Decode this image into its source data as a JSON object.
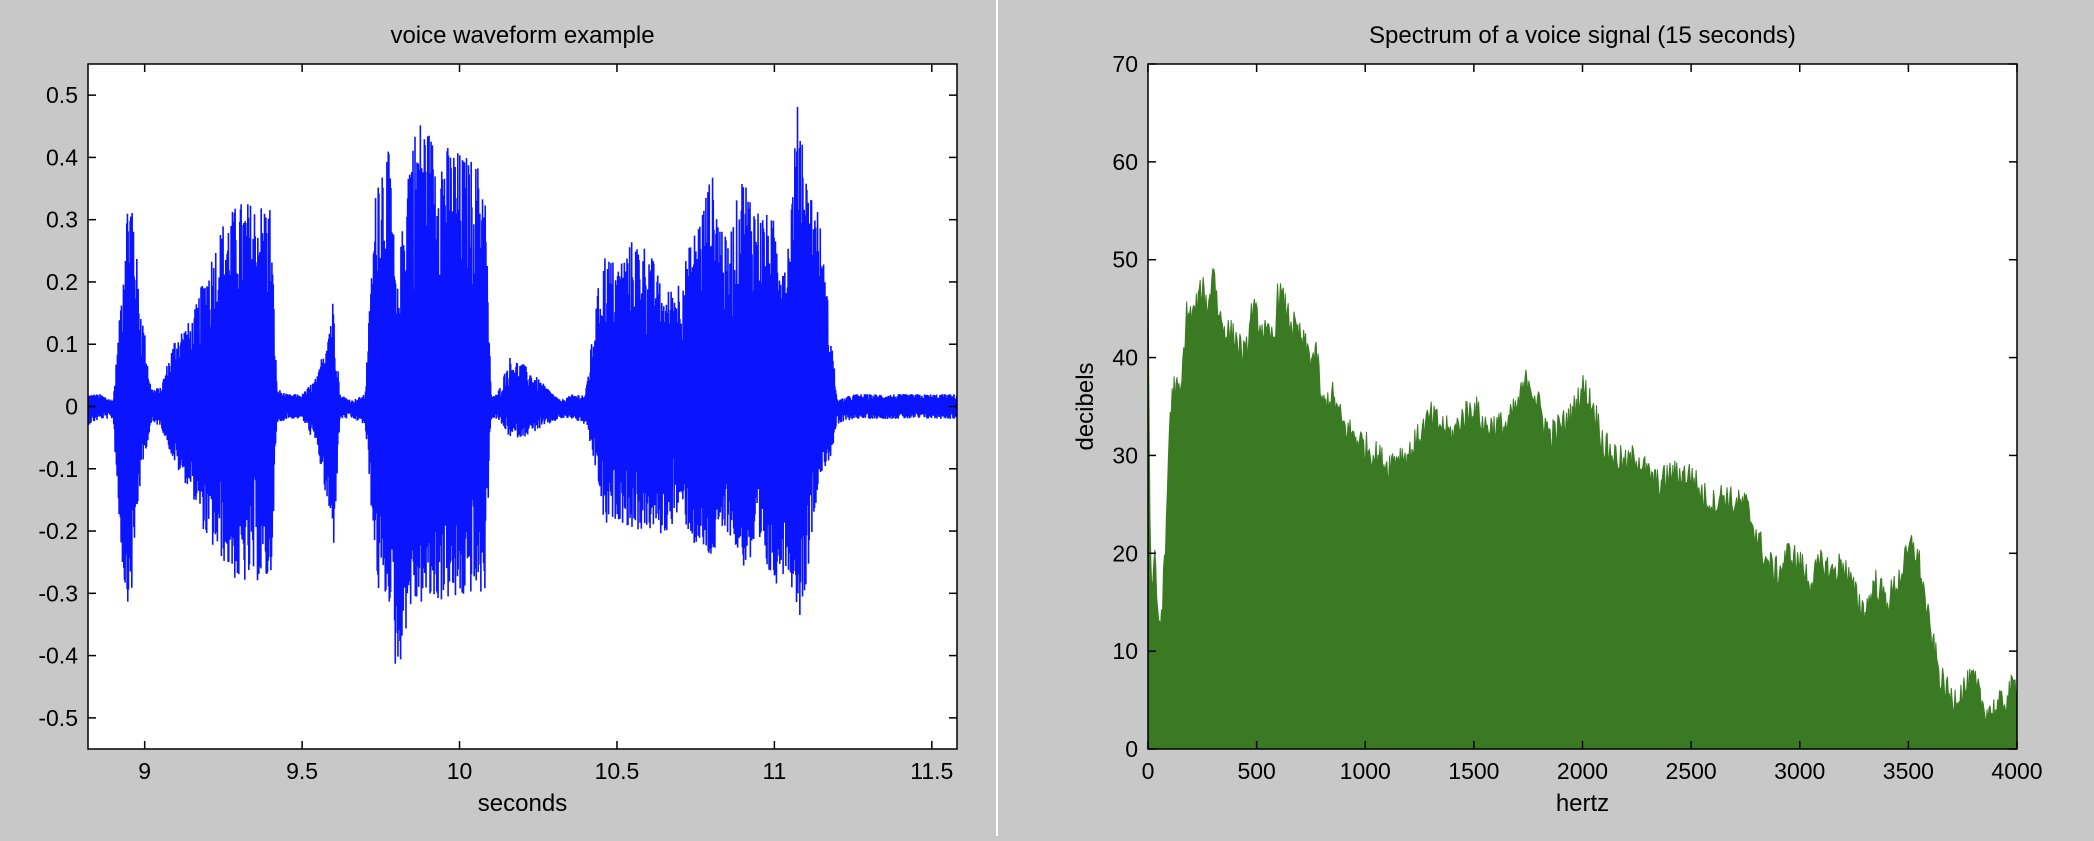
{
  "colors": {
    "figure_bg": "#c8c8c8",
    "axes_bg": "#ffffff",
    "waveform": "#0a14ff",
    "spectrum": "#3a7a22"
  },
  "chart_data": [
    {
      "type": "line",
      "title": "voice waveform example",
      "xlabel": "seconds",
      "ylabel": "",
      "xlim": [
        8.82,
        11.58
      ],
      "ylim": [
        -0.55,
        0.55
      ],
      "xticks": [
        9,
        9.5,
        10,
        10.5,
        11,
        11.5
      ],
      "xtick_labels": [
        "9",
        "9.5",
        "10",
        "10.5",
        "11",
        "11.5"
      ],
      "yticks": [
        0.5,
        0.4,
        0.3,
        0.2,
        0.1,
        0,
        -0.1,
        -0.2,
        -0.3,
        -0.4,
        -0.5
      ],
      "ytick_labels": [
        "0.5",
        "0.4",
        "0.3",
        "0.2",
        "0.1",
        "0",
        "-0.1",
        "-0.2",
        "-0.3",
        "-0.4",
        "-0.5"
      ],
      "grid": false,
      "series": [
        {
          "x": [
            8.82,
            8.86,
            8.9,
            8.92,
            8.94,
            8.96,
            8.98,
            9.0,
            9.02,
            9.05,
            9.1,
            9.15,
            9.2,
            9.25,
            9.3,
            9.35,
            9.4,
            9.42,
            9.45,
            9.5,
            9.55,
            9.6,
            9.62,
            9.66,
            9.7,
            9.74,
            9.78,
            9.8,
            9.84,
            9.88,
            9.92,
            9.96,
            9.98,
            10.0,
            10.04,
            10.08,
            10.1,
            10.12,
            10.16,
            10.2,
            10.24,
            10.28,
            10.32,
            10.36,
            10.4,
            10.44,
            10.46,
            10.5,
            10.55,
            10.6,
            10.65,
            10.7,
            10.75,
            10.8,
            10.85,
            10.9,
            10.95,
            11.0,
            11.04,
            11.08,
            11.1,
            11.14,
            11.18,
            11.2,
            11.25,
            11.3,
            11.35,
            11.4,
            11.45,
            11.5,
            11.58
          ],
          "envelope_top": [
            0.02,
            0.02,
            0.01,
            0.14,
            0.33,
            0.36,
            0.2,
            0.12,
            0.03,
            0.03,
            0.12,
            0.14,
            0.23,
            0.3,
            0.33,
            0.33,
            0.33,
            0.03,
            0.02,
            0.02,
            0.05,
            0.18,
            0.02,
            0.01,
            0.02,
            0.41,
            0.41,
            0.17,
            0.43,
            0.47,
            0.43,
            0.42,
            0.42,
            0.41,
            0.4,
            0.38,
            0.02,
            0.02,
            0.08,
            0.07,
            0.05,
            0.03,
            0.01,
            0.02,
            0.02,
            0.19,
            0.25,
            0.23,
            0.27,
            0.26,
            0.18,
            0.21,
            0.29,
            0.38,
            0.26,
            0.38,
            0.32,
            0.3,
            0.25,
            0.53,
            0.38,
            0.32,
            0.12,
            0.01,
            0.02,
            0.02,
            0.02,
            0.02,
            0.02,
            0.02,
            0.02
          ],
          "envelope_bottom": [
            -0.03,
            -0.02,
            -0.02,
            -0.2,
            -0.32,
            -0.3,
            -0.15,
            -0.08,
            -0.03,
            -0.03,
            -0.1,
            -0.14,
            -0.22,
            -0.25,
            -0.29,
            -0.28,
            -0.29,
            -0.03,
            -0.02,
            -0.02,
            -0.07,
            -0.23,
            -0.02,
            -0.02,
            -0.03,
            -0.3,
            -0.32,
            -0.45,
            -0.33,
            -0.32,
            -0.32,
            -0.31,
            -0.32,
            -0.32,
            -0.3,
            -0.31,
            -0.02,
            -0.02,
            -0.05,
            -0.05,
            -0.04,
            -0.03,
            -0.02,
            -0.02,
            -0.03,
            -0.12,
            -0.2,
            -0.18,
            -0.2,
            -0.2,
            -0.21,
            -0.17,
            -0.23,
            -0.25,
            -0.2,
            -0.26,
            -0.25,
            -0.29,
            -0.26,
            -0.34,
            -0.29,
            -0.12,
            -0.08,
            -0.03,
            -0.02,
            -0.02,
            -0.02,
            -0.02,
            -0.02,
            -0.02,
            -0.02
          ]
        }
      ]
    },
    {
      "type": "area",
      "title": "Spectrum of a voice signal (15 seconds)",
      "xlabel": "hertz",
      "ylabel": "decibels",
      "xlim": [
        0,
        4000
      ],
      "ylim": [
        0,
        70
      ],
      "xticks": [
        0,
        500,
        1000,
        1500,
        2000,
        2500,
        3000,
        3500,
        4000
      ],
      "xtick_labels": [
        "0",
        "500",
        "1000",
        "1500",
        "2000",
        "2500",
        "3000",
        "3500",
        "4000"
      ],
      "yticks": [
        0,
        10,
        20,
        30,
        40,
        50,
        60,
        70
      ],
      "ytick_labels": [
        "0",
        "10",
        "20",
        "30",
        "40",
        "50",
        "60",
        "70"
      ],
      "grid": false,
      "series": [
        {
          "x": [
            0,
            10,
            20,
            30,
            40,
            60,
            80,
            100,
            120,
            150,
            180,
            200,
            220,
            250,
            280,
            300,
            320,
            350,
            400,
            450,
            480,
            500,
            520,
            550,
            580,
            600,
            650,
            700,
            750,
            780,
            800,
            850,
            900,
            950,
            1000,
            1050,
            1100,
            1150,
            1200,
            1250,
            1300,
            1350,
            1400,
            1450,
            1500,
            1550,
            1600,
            1650,
            1700,
            1750,
            1800,
            1850,
            1900,
            1950,
            2000,
            2050,
            2100,
            2150,
            2200,
            2250,
            2300,
            2350,
            2400,
            2450,
            2500,
            2550,
            2600,
            2650,
            2700,
            2750,
            2800,
            2850,
            2900,
            2950,
            3000,
            3050,
            3100,
            3150,
            3200,
            3250,
            3300,
            3350,
            3400,
            3450,
            3500,
            3520,
            3550,
            3600,
            3650,
            3700,
            3750,
            3800,
            3850,
            3900,
            3950,
            4000
          ],
          "values": [
            48,
            21,
            15,
            22,
            14,
            13,
            20,
            34,
            37,
            36,
            45,
            44,
            45,
            47,
            45,
            50,
            45,
            43,
            42,
            40,
            45,
            44,
            43,
            42,
            42,
            47,
            44,
            42,
            40,
            40,
            35,
            36,
            33,
            32,
            31,
            30,
            29,
            30,
            30,
            32,
            34,
            33,
            32,
            34,
            35,
            33,
            33,
            33,
            35,
            38,
            35,
            32,
            33,
            34,
            37,
            35,
            31,
            30,
            29,
            30,
            28,
            27,
            28,
            28,
            28,
            26,
            25,
            26,
            25,
            25,
            22,
            19,
            18,
            20,
            19,
            17,
            19,
            18,
            19,
            16,
            14,
            17,
            15,
            17,
            20,
            21,
            19,
            12,
            7,
            5,
            6,
            7,
            4,
            4,
            5,
            7
          ]
        }
      ]
    }
  ]
}
